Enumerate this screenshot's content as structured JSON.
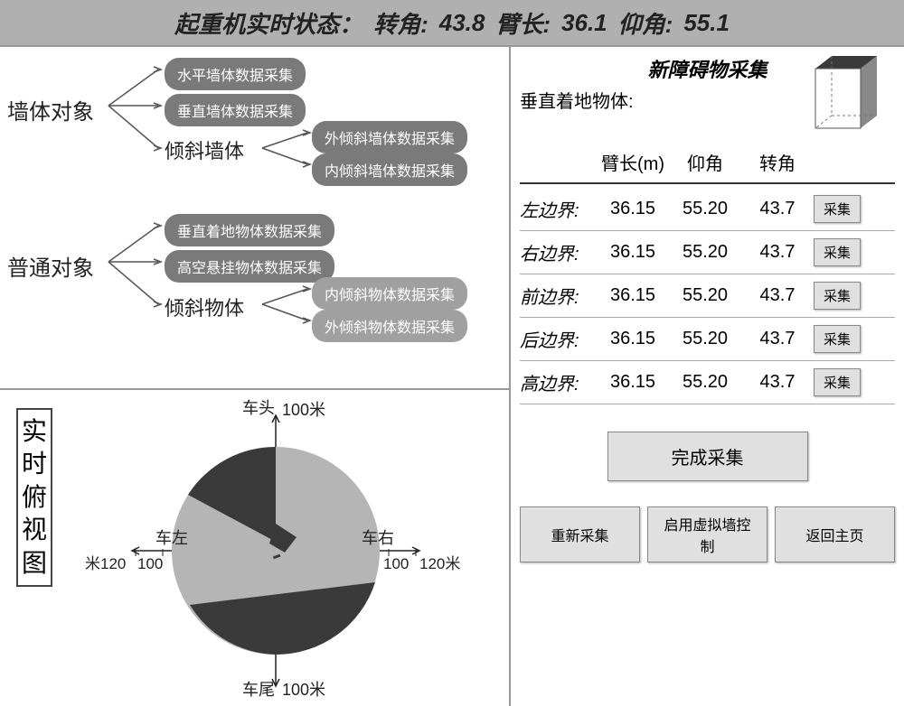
{
  "header": {
    "status_label": "起重机实时状态：",
    "angle_label": "转角:",
    "angle_value": "43.8",
    "arm_label": "臂长:",
    "arm_value": "36.1",
    "elev_label": "仰角:",
    "elev_value": "55.1"
  },
  "tree": {
    "group1": {
      "root": "墙体对象",
      "items": [
        "水平墙体数据采集",
        "垂直墙体数据采集"
      ],
      "sub_label": "倾斜墙体",
      "sub_items": [
        "外倾斜墙体数据采集",
        "内倾斜墙体数据采集"
      ]
    },
    "group2": {
      "root": "普通对象",
      "items": [
        "垂直着地物体数据采集",
        "高空悬挂物体数据采集"
      ],
      "sub_label": "倾斜物体",
      "sub_items": [
        "内倾斜物体数据采集",
        "外倾斜物体数据采集"
      ]
    }
  },
  "topview": {
    "title": "实时俯视图",
    "front": "车头",
    "rear": "车尾",
    "left": "车左",
    "right": "车右",
    "front_dist": "100米",
    "rear_dist": "100米",
    "left_dist_inner": "100",
    "left_dist_outer": "米120",
    "right_dist_inner": "100",
    "right_dist_outer": "120米",
    "circle": {
      "bg_color": "#b5b5b5",
      "wedge_top_color": "#3a3a3a",
      "wedge_bottom_color": "#3a3a3a",
      "marker_color": "#3a3a3a"
    }
  },
  "right_panel": {
    "title": "新障碍物采集",
    "subtitle": "垂直着地物体:",
    "cols": [
      "臂长(m)",
      "仰角",
      "转角"
    ],
    "rows": [
      {
        "label": "左边界:",
        "v1": "36.15",
        "v2": "55.20",
        "v3": "43.7"
      },
      {
        "label": "右边界:",
        "v1": "36.15",
        "v2": "55.20",
        "v3": "43.7"
      },
      {
        "label": "前边界:",
        "v1": "36.15",
        "v2": "55.20",
        "v3": "43.7"
      },
      {
        "label": "后边界:",
        "v1": "36.15",
        "v2": "55.20",
        "v3": "43.7"
      },
      {
        "label": "高边界:",
        "v1": "36.15",
        "v2": "55.20",
        "v3": "43.7"
      }
    ],
    "collect_btn": "采集",
    "complete_btn": "完成采集",
    "bottom_buttons": [
      "重新采集",
      "启用虚拟墙控制",
      "返回主页"
    ],
    "cube_colors": {
      "top": "#3a3a3a",
      "side": "#888888",
      "front_fill": "#ffffff",
      "stroke": "#555555",
      "dash": "#777777"
    }
  }
}
